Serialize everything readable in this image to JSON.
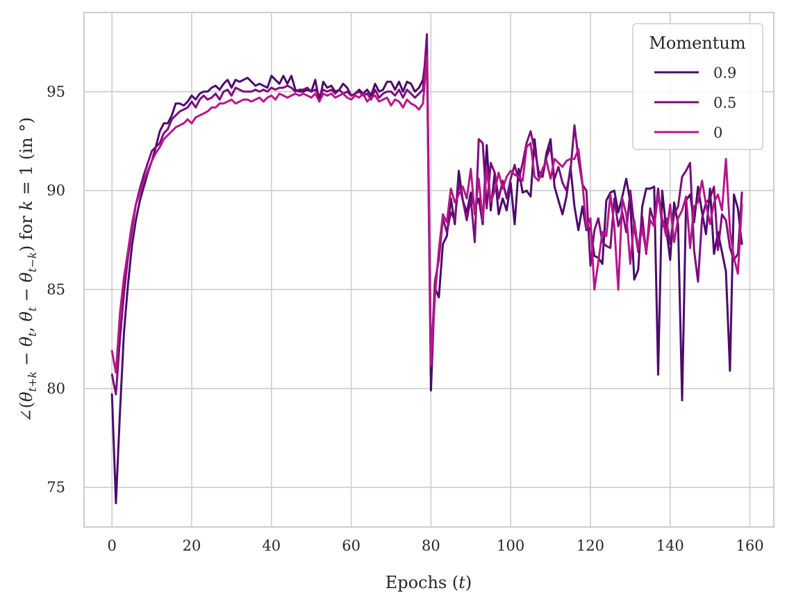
{
  "chart_data": {
    "type": "line",
    "xlabel": "Epochs (t)",
    "ylabel": "∠(θ_{t+k} − θ_t, θ_t − θ_{t−k}) for k = 1 (in °)",
    "xlim": [
      -7,
      166
    ],
    "ylim": [
      73,
      99
    ],
    "xticks": [
      0,
      20,
      40,
      60,
      80,
      100,
      120,
      140,
      160
    ],
    "yticks": [
      75,
      80,
      85,
      90,
      95
    ],
    "grid": true,
    "legend": {
      "title": "Momentum",
      "position": "top-right"
    },
    "series": [
      {
        "name": "0.9",
        "color": "#4a0a6b",
        "x": [
          0,
          1,
          2,
          3,
          4,
          5,
          6,
          7,
          8,
          9,
          10,
          11,
          12,
          13,
          14,
          15,
          16,
          17,
          18,
          19,
          20,
          21,
          22,
          23,
          24,
          25,
          26,
          27,
          28,
          29,
          30,
          31,
          32,
          33,
          34,
          35,
          36,
          37,
          38,
          39,
          40,
          41,
          42,
          43,
          44,
          45,
          46,
          47,
          48,
          49,
          50,
          51,
          52,
          53,
          54,
          55,
          56,
          57,
          58,
          59,
          60,
          61,
          62,
          63,
          64,
          65,
          66,
          67,
          68,
          69,
          70,
          71,
          72,
          73,
          74,
          75,
          76,
          77,
          78,
          79,
          80,
          81,
          82,
          83,
          84,
          85,
          86,
          87,
          88,
          89,
          90,
          91,
          92,
          93,
          94,
          95,
          96,
          97,
          98,
          99,
          100,
          101,
          102,
          103,
          104,
          105,
          106,
          107,
          108,
          109,
          110,
          111,
          112,
          113,
          114,
          115,
          116,
          117,
          118,
          119,
          120,
          121,
          122,
          123,
          124,
          125,
          126,
          127,
          128,
          129,
          130,
          131,
          132,
          133,
          134,
          135,
          136,
          137,
          138,
          139,
          140,
          141,
          142,
          143,
          144,
          145,
          146,
          147,
          148,
          149,
          150,
          151,
          152,
          153,
          154,
          155,
          156,
          157,
          158
        ],
        "y": [
          79.7,
          74.2,
          78.8,
          82.8,
          85.2,
          87.2,
          88.5,
          89.5,
          90.2,
          90.9,
          91.5,
          92.2,
          93.0,
          93.4,
          93.4,
          93.8,
          94.4,
          94.4,
          94.3,
          94.5,
          94.8,
          94.6,
          94.9,
          95.0,
          95.0,
          95.2,
          95.3,
          95.1,
          95.4,
          95.6,
          95.2,
          95.6,
          95.5,
          95.6,
          95.7,
          95.5,
          95.3,
          95.4,
          95.3,
          95.2,
          95.8,
          95.6,
          95.4,
          95.8,
          95.4,
          95.8,
          95.1,
          95.0,
          95.0,
          95.1,
          95.0,
          95.6,
          94.5,
          95.5,
          95.2,
          95.3,
          95.0,
          95.1,
          95.4,
          95.2,
          94.8,
          94.9,
          95.1,
          94.9,
          95.1,
          94.8,
          95.4,
          95.0,
          95.1,
          95.5,
          95.5,
          95.1,
          95.5,
          95.0,
          95.5,
          95.4,
          95.0,
          95.2,
          95.6,
          97.2,
          79.9,
          85.1,
          84.6,
          87.3,
          87.7,
          89.6,
          88.3,
          91.0,
          89.5,
          88.9,
          89.9,
          89.1,
          89.6,
          88.3,
          92.3,
          89.0,
          90.9,
          88.8,
          89.6,
          89.0,
          90.4,
          88.3,
          91.1,
          89.9,
          90.0,
          89.7,
          92.6,
          90.7,
          90.7,
          91.9,
          92.6,
          90.2,
          89.5,
          88.8,
          89.7,
          91.2,
          89.2,
          88.0,
          89.2,
          88.0,
          88.1,
          86.7,
          86.6,
          86.3,
          89.5,
          89.9,
          90.0,
          88.9,
          89.7,
          90.6,
          89.4,
          85.5,
          86.0,
          89.2,
          90.1,
          90.1,
          90.2,
          80.7,
          90.0,
          88.1,
          86.5,
          89.4,
          88.3,
          79.4,
          89.5,
          89.8,
          88.4,
          90.2,
          88.9,
          87.8,
          90.1,
          86.8,
          87.9,
          86.9,
          85.9,
          80.9,
          89.8,
          89.1,
          87.3
        ]
      },
      {
        "name": "0.5",
        "color": "#7d0a7d",
        "x": [
          0,
          1,
          2,
          3,
          4,
          5,
          6,
          7,
          8,
          9,
          10,
          11,
          12,
          13,
          14,
          15,
          16,
          17,
          18,
          19,
          20,
          21,
          22,
          23,
          24,
          25,
          26,
          27,
          28,
          29,
          30,
          31,
          32,
          33,
          34,
          35,
          36,
          37,
          38,
          39,
          40,
          41,
          42,
          43,
          44,
          45,
          46,
          47,
          48,
          49,
          50,
          51,
          52,
          53,
          54,
          55,
          56,
          57,
          58,
          59,
          60,
          61,
          62,
          63,
          64,
          65,
          66,
          67,
          68,
          69,
          70,
          71,
          72,
          73,
          74,
          75,
          76,
          77,
          78,
          79,
          80,
          81,
          82,
          83,
          84,
          85,
          86,
          87,
          88,
          89,
          90,
          91,
          92,
          93,
          94,
          95,
          96,
          97,
          98,
          99,
          100,
          101,
          102,
          103,
          104,
          105,
          106,
          107,
          108,
          109,
          110,
          111,
          112,
          113,
          114,
          115,
          116,
          117,
          118,
          119,
          120,
          121,
          122,
          123,
          124,
          125,
          126,
          127,
          128,
          129,
          130,
          131,
          132,
          133,
          134,
          135,
          136,
          137,
          138,
          139,
          140,
          141,
          142,
          143,
          144,
          145,
          146,
          147,
          148,
          149,
          150,
          151,
          152,
          153,
          154,
          155,
          156,
          157,
          158
        ],
        "y": [
          80.7,
          79.7,
          82.5,
          84.8,
          86.6,
          88.0,
          89.3,
          90.1,
          90.8,
          91.4,
          92.0,
          92.2,
          92.4,
          92.9,
          93.1,
          93.6,
          93.8,
          94.0,
          94.1,
          94.2,
          94.5,
          94.2,
          94.6,
          94.8,
          94.6,
          94.7,
          94.9,
          94.6,
          95.0,
          95.1,
          94.8,
          95.2,
          95.1,
          95.0,
          95.0,
          95.0,
          95.1,
          95.0,
          95.1,
          95.0,
          95.2,
          95.1,
          95.2,
          95.2,
          95.3,
          95.2,
          95.0,
          95.1,
          95.1,
          95.2,
          95.0,
          95.1,
          94.8,
          95.1,
          95.0,
          95.1,
          94.9,
          95.1,
          94.9,
          95.0,
          94.8,
          94.9,
          95.0,
          94.8,
          94.9,
          94.6,
          95.1,
          94.7,
          94.9,
          95.0,
          95.0,
          94.8,
          95.1,
          94.7,
          95.1,
          94.9,
          94.7,
          94.9,
          95.1,
          97.9,
          81.1,
          85.4,
          86.5,
          88.6,
          87.9,
          88.9,
          88.5,
          90.4,
          89.5,
          88.5,
          89.6,
          87.4,
          92.6,
          92.4,
          89.1,
          91.4,
          90.9,
          89.6,
          90.5,
          89.6,
          90.6,
          91.3,
          90.5,
          91.4,
          92.4,
          93.0,
          92.1,
          91.0,
          90.7,
          91.7,
          92.2,
          90.6,
          91.2,
          90.4,
          90.0,
          91.0,
          93.3,
          91.6,
          90.3,
          90.0,
          86.2,
          88.0,
          88.6,
          87.4,
          87.2,
          87.1,
          89.6,
          88.2,
          88.9,
          87.9,
          90.0,
          88.2,
          86.9,
          88.7,
          86.8,
          89.1,
          88.4,
          90.1,
          88.2,
          88.6,
          87.3,
          88.8,
          89.2,
          90.7,
          91.0,
          91.4,
          87.0,
          85.4,
          88.6,
          89.4,
          89.6,
          90.2,
          87.0,
          88.8,
          88.5,
          87.1,
          86.5,
          86.8,
          89.9
        ]
      },
      {
        "name": "0",
        "color": "#b5168a",
        "x": [
          0,
          1,
          2,
          3,
          4,
          5,
          6,
          7,
          8,
          9,
          10,
          11,
          12,
          13,
          14,
          15,
          16,
          17,
          18,
          19,
          20,
          21,
          22,
          23,
          24,
          25,
          26,
          27,
          28,
          29,
          30,
          31,
          32,
          33,
          34,
          35,
          36,
          37,
          38,
          39,
          40,
          41,
          42,
          43,
          44,
          45,
          46,
          47,
          48,
          49,
          50,
          51,
          52,
          53,
          54,
          55,
          56,
          57,
          58,
          59,
          60,
          61,
          62,
          63,
          64,
          65,
          66,
          67,
          68,
          69,
          70,
          71,
          72,
          73,
          74,
          75,
          76,
          77,
          78,
          79,
          80,
          81,
          82,
          83,
          84,
          85,
          86,
          87,
          88,
          89,
          90,
          91,
          92,
          93,
          94,
          95,
          96,
          97,
          98,
          99,
          100,
          101,
          102,
          103,
          104,
          105,
          106,
          107,
          108,
          109,
          110,
          111,
          112,
          113,
          114,
          115,
          116,
          117,
          118,
          119,
          120,
          121,
          122,
          123,
          124,
          125,
          126,
          127,
          128,
          129,
          130,
          131,
          132,
          133,
          134,
          135,
          136,
          137,
          138,
          139,
          140,
          141,
          142,
          143,
          144,
          145,
          146,
          147,
          148,
          149,
          150,
          151,
          152,
          153,
          154,
          155,
          156,
          157,
          158
        ],
        "y": [
          81.9,
          80.8,
          83.8,
          85.6,
          86.9,
          88.3,
          89.3,
          89.9,
          90.5,
          91.0,
          91.5,
          91.9,
          92.2,
          92.6,
          92.8,
          93.0,
          93.2,
          93.3,
          93.4,
          93.6,
          93.4,
          93.7,
          93.8,
          93.9,
          94.0,
          94.2,
          94.2,
          94.4,
          94.4,
          94.5,
          94.6,
          94.4,
          94.5,
          94.6,
          94.6,
          94.5,
          94.6,
          94.7,
          94.5,
          94.7,
          94.8,
          94.6,
          94.9,
          94.8,
          94.7,
          94.8,
          94.9,
          94.8,
          94.9,
          94.8,
          94.7,
          94.9,
          94.5,
          94.9,
          94.8,
          94.9,
          94.7,
          94.8,
          94.9,
          94.7,
          94.6,
          94.8,
          94.7,
          94.9,
          94.5,
          94.7,
          94.8,
          94.5,
          94.6,
          94.7,
          94.3,
          94.6,
          94.5,
          94.2,
          94.6,
          94.4,
          94.3,
          94.1,
          94.4,
          96.8,
          81.2,
          84.6,
          87.0,
          88.8,
          88.4,
          90.1,
          89.4,
          89.8,
          90.2,
          89.6,
          91.1,
          88.8,
          90.6,
          88.5,
          91.1,
          89.4,
          90.0,
          90.9,
          90.1,
          90.7,
          91.0,
          90.8,
          90.7,
          90.5,
          92.2,
          92.4,
          90.7,
          90.5,
          91.1,
          91.5,
          90.6,
          91.6,
          91.4,
          91.2,
          91.5,
          91.6,
          91.6,
          92.1,
          90.4,
          88.1,
          88.6,
          85.0,
          86.4,
          87.9,
          87.7,
          89.8,
          88.2,
          85.0,
          89.6,
          88.8,
          86.3,
          88.5,
          87.0,
          88.1,
          86.9,
          88.5,
          88.2,
          89.8,
          88.6,
          87.7,
          89.3,
          87.4,
          88.6,
          89.0,
          89.7,
          87.1,
          89.2,
          89.4,
          90.5,
          89.3,
          88.3,
          89.4,
          89.8,
          89.0,
          91.6,
          88.0,
          86.6,
          85.8,
          89.3
        ]
      }
    ]
  }
}
